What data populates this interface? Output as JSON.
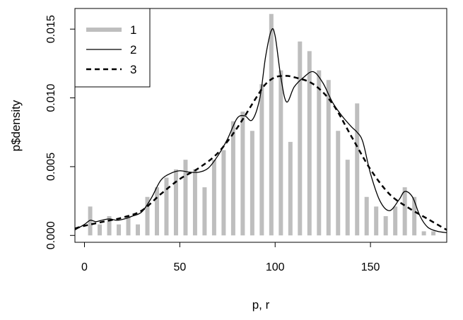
{
  "chart_data": {
    "type": "bar",
    "xlabel": "p, r",
    "ylabel": "p$density",
    "xlim": [
      -5,
      190
    ],
    "ylim": [
      -0.0005,
      0.0165
    ],
    "xticks": [
      0,
      50,
      100,
      150
    ],
    "yticks": [
      0.0,
      0.005,
      0.01,
      0.015
    ],
    "ytick_labels": [
      "0.000",
      "0.005",
      "0.010",
      "0.015"
    ],
    "grid": false,
    "legend_position": "top-left",
    "series": [
      {
        "name": "1",
        "kind": "histogram-bars",
        "color": "#bebebe",
        "x": [
          3,
          8,
          13,
          18,
          23,
          28,
          33,
          38,
          43,
          48,
          53,
          58,
          63,
          68,
          73,
          78,
          83,
          88,
          93,
          98,
          103,
          108,
          113,
          118,
          123,
          128,
          133,
          138,
          143,
          148,
          153,
          158,
          163,
          168,
          173,
          178,
          183
        ],
        "values": [
          0.0021,
          0.0008,
          0.0014,
          0.0008,
          0.0014,
          0.0008,
          0.0028,
          0.0035,
          0.0042,
          0.0048,
          0.0055,
          0.0048,
          0.0035,
          0.0055,
          0.0062,
          0.0083,
          0.009,
          0.0076,
          0.011,
          0.0161,
          0.012,
          0.0068,
          0.0141,
          0.0134,
          0.012,
          0.0113,
          0.0076,
          0.0055,
          0.0096,
          0.0028,
          0.0021,
          0.0014,
          0.0021,
          0.0035,
          0.0028,
          0.0003,
          0.0003
        ]
      },
      {
        "name": "2",
        "kind": "line",
        "style": "solid",
        "color": "#000000",
        "x": [
          -5,
          0,
          3,
          6,
          9,
          13,
          17,
          21,
          25,
          30,
          35,
          40,
          45,
          50,
          55,
          60,
          65,
          70,
          75,
          80,
          84,
          88,
          92,
          95,
          98,
          100,
          103,
          106,
          110,
          115,
          120,
          125,
          130,
          135,
          140,
          143,
          146,
          150,
          155,
          160,
          165,
          168,
          172,
          176,
          180,
          185,
          190
        ],
        "y": [
          0.0004,
          0.0008,
          0.0011,
          0.001,
          0.0011,
          0.0012,
          0.0011,
          0.0012,
          0.0014,
          0.0017,
          0.0027,
          0.004,
          0.0045,
          0.0047,
          0.0046,
          0.0046,
          0.0049,
          0.0058,
          0.007,
          0.0085,
          0.0087,
          0.0084,
          0.01,
          0.013,
          0.0149,
          0.0145,
          0.0115,
          0.0097,
          0.0108,
          0.0115,
          0.0119,
          0.0111,
          0.0097,
          0.0087,
          0.0079,
          0.0075,
          0.0068,
          0.0045,
          0.0025,
          0.0018,
          0.0026,
          0.0032,
          0.0028,
          0.0014,
          0.0006,
          0.0003,
          0.0002
        ]
      },
      {
        "name": "3",
        "kind": "line",
        "style": "dashed",
        "color": "#000000",
        "x": [
          -5,
          0,
          10,
          20,
          30,
          40,
          50,
          60,
          70,
          80,
          90,
          95,
          100,
          105,
          110,
          120,
          130,
          140,
          150,
          160,
          170,
          180,
          190
        ],
        "y": [
          0.0005,
          0.0007,
          0.001,
          0.0013,
          0.0018,
          0.003,
          0.0041,
          0.0049,
          0.006,
          0.0078,
          0.01,
          0.011,
          0.0115,
          0.0116,
          0.0115,
          0.011,
          0.0096,
          0.0072,
          0.0048,
          0.003,
          0.002,
          0.0012,
          0.0004
        ]
      }
    ]
  }
}
